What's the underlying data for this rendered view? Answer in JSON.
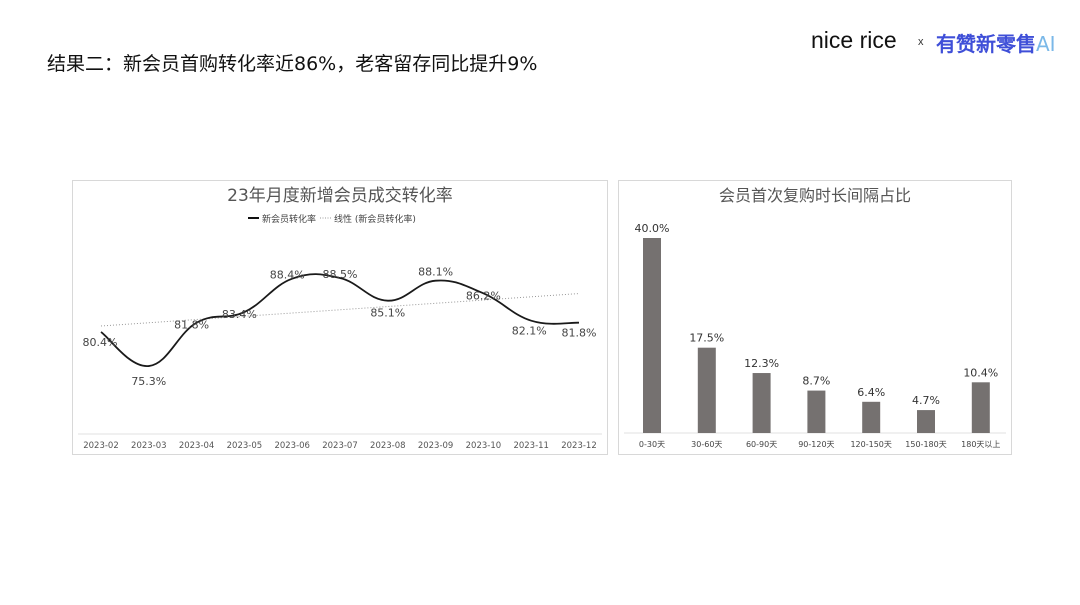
{
  "header": {
    "title": "结果二：新会员首购转化率近86%，老客留存同比提升9%",
    "logo_left": "nice rice",
    "logo_sep": "x",
    "logo_right": "有赞新零售",
    "logo_ai": "AI",
    "brand_color": "#3f4fd8"
  },
  "chart_data": [
    {
      "type": "line",
      "title": "23年月度新增会员成交转化率",
      "legend": [
        "新会员转化率",
        "线性 (新会员转化率)"
      ],
      "legend_placement": "top",
      "categories": [
        "2023-02",
        "2023-03",
        "2023-04",
        "2023-05",
        "2023-06",
        "2023-07",
        "2023-08",
        "2023-09",
        "2023-10",
        "2023-11",
        "2023-12"
      ],
      "series": [
        {
          "name": "新会员转化率",
          "values": [
            80.4,
            75.3,
            81.8,
            83.4,
            88.4,
            88.5,
            85.1,
            88.1,
            86.2,
            82.1,
            81.8
          ],
          "labels": [
            "80.4%",
            "75.3%",
            "81.8%",
            "83.4%",
            "88.4%",
            "88.5%",
            "85.1%",
            "88.1%",
            "86.2%",
            "82.1%",
            "81.8%"
          ],
          "color": "#1a1a1a",
          "smooth": true
        },
        {
          "name": "线性 (新会员转化率)",
          "type": "trendline",
          "style": "dotted",
          "color": "#999999"
        }
      ],
      "grid": false
    },
    {
      "type": "bar",
      "title": "会员首次复购时长间隔占比",
      "categories": [
        "0-30天",
        "30-60天",
        "60-90天",
        "90-120天",
        "120-150天",
        "150-180天",
        "180天以上"
      ],
      "values": [
        40.0,
        17.5,
        12.3,
        8.7,
        6.4,
        4.7,
        10.4
      ],
      "labels": [
        "40.0%",
        "17.5%",
        "12.3%",
        "8.7%",
        "6.4%",
        "4.7%",
        "10.4%"
      ],
      "color": "#757170",
      "grid": false
    }
  ]
}
